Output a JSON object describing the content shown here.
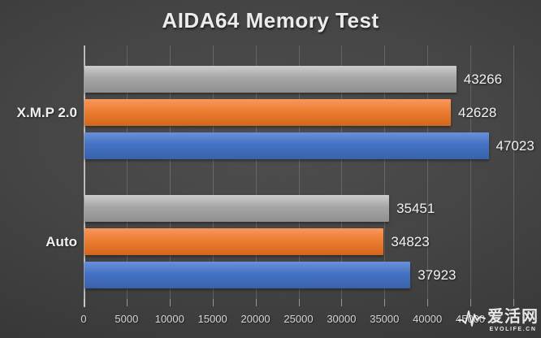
{
  "title": "AIDA64 Memory Test",
  "chart_data": {
    "type": "bar",
    "orientation": "horizontal",
    "title": "AIDA64 Memory Test",
    "categories": [
      "X.M.P 2.0",
      "Auto"
    ],
    "series": [
      {
        "name": "gray",
        "color": "#A5A5A5",
        "color_light": "#cdcdcd",
        "color_dark": "#8f8f8f",
        "values": [
          43266,
          35451
        ]
      },
      {
        "name": "orange",
        "color": "#ED7D31",
        "color_light": "#f8975c",
        "color_dark": "#d2661c",
        "values": [
          42628,
          34823
        ]
      },
      {
        "name": "blue",
        "color": "#4472C4",
        "color_light": "#6a90d9",
        "color_dark": "#3a62ab",
        "values": [
          47023,
          37923
        ]
      }
    ],
    "xlim": [
      0,
      50000
    ],
    "grid_step": 5000,
    "x_tick_labels": [
      "0",
      "5000",
      "10000",
      "15000",
      "20000",
      "25000",
      "30000",
      "35000",
      "40000",
      "45000"
    ],
    "grid": true,
    "legend": "none",
    "value_labels": true
  },
  "watermark": {
    "cn": "爱活网",
    "en": "EVOLIFE.CN"
  },
  "colors": {
    "background_center": "#4e4e4e",
    "background_edge": "#252525",
    "axis_line": "#cfcfcf",
    "gridline": "rgba(255,255,255,0.16)",
    "text": "#f2f2f2",
    "tick_text": "#d6d6d6"
  }
}
